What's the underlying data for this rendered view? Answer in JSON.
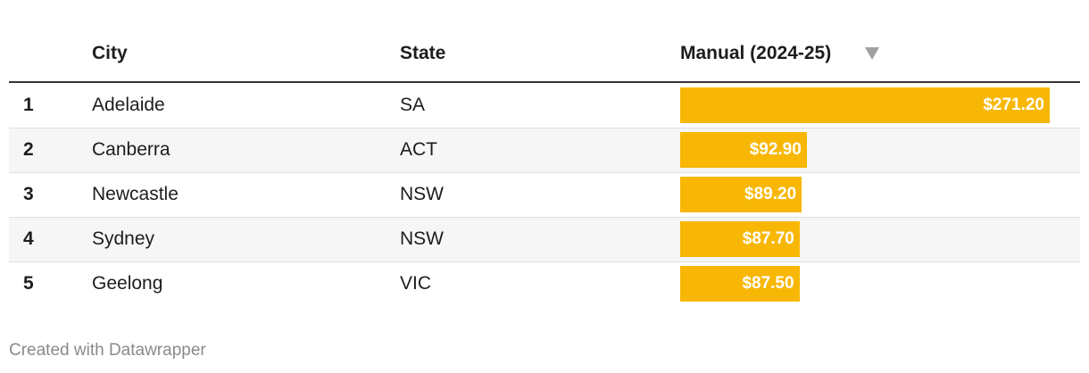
{
  "table": {
    "columns": [
      "City",
      "State",
      "Manual (2024-25)"
    ],
    "rows": [
      {
        "rank": 1,
        "city": "Adelaide",
        "state": "SA",
        "manual": 271.2,
        "manual_label": "$271.20"
      },
      {
        "rank": 2,
        "city": "Canberra",
        "state": "ACT",
        "manual": 92.9,
        "manual_label": "$92.90"
      },
      {
        "rank": 3,
        "city": "Newcastle",
        "state": "NSW",
        "manual": 89.2,
        "manual_label": "$89.20"
      },
      {
        "rank": 4,
        "city": "Sydney",
        "state": "NSW",
        "manual": 87.7,
        "manual_label": "$87.70"
      },
      {
        "rank": 5,
        "city": "Geelong",
        "state": "VIC",
        "manual": 87.5,
        "manual_label": "$87.50"
      }
    ],
    "bar_color": "#f8b705"
  },
  "footer": "Created with Datawrapper"
}
